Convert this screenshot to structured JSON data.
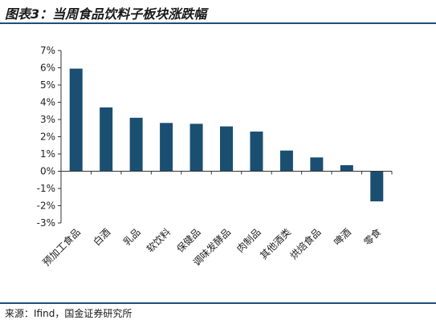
{
  "figure": {
    "title": "图表3：当周食品饮料子板块涨跌幅",
    "source": "来源：Ifind，国金证券研究所"
  },
  "colors": {
    "bar": "#1b4f72",
    "rule": "#1f4e79"
  },
  "chart_data": {
    "type": "bar",
    "categories": [
      "预加工食品",
      "白酒",
      "乳品",
      "软饮料",
      "保健品",
      "调味发酵品",
      "肉制品",
      "其他酒类",
      "烘焙食品",
      "啤酒",
      "零食"
    ],
    "values": [
      5.95,
      3.7,
      3.1,
      2.8,
      2.75,
      2.6,
      2.3,
      1.2,
      0.8,
      0.35,
      -1.75
    ],
    "ylim": [
      -3,
      7
    ],
    "yticks": [
      "-3%",
      "-2%",
      "-1%",
      "0%",
      "1%",
      "2%",
      "3%",
      "4%",
      "5%",
      "6%",
      "7%"
    ],
    "grid": false,
    "legend": "none"
  }
}
